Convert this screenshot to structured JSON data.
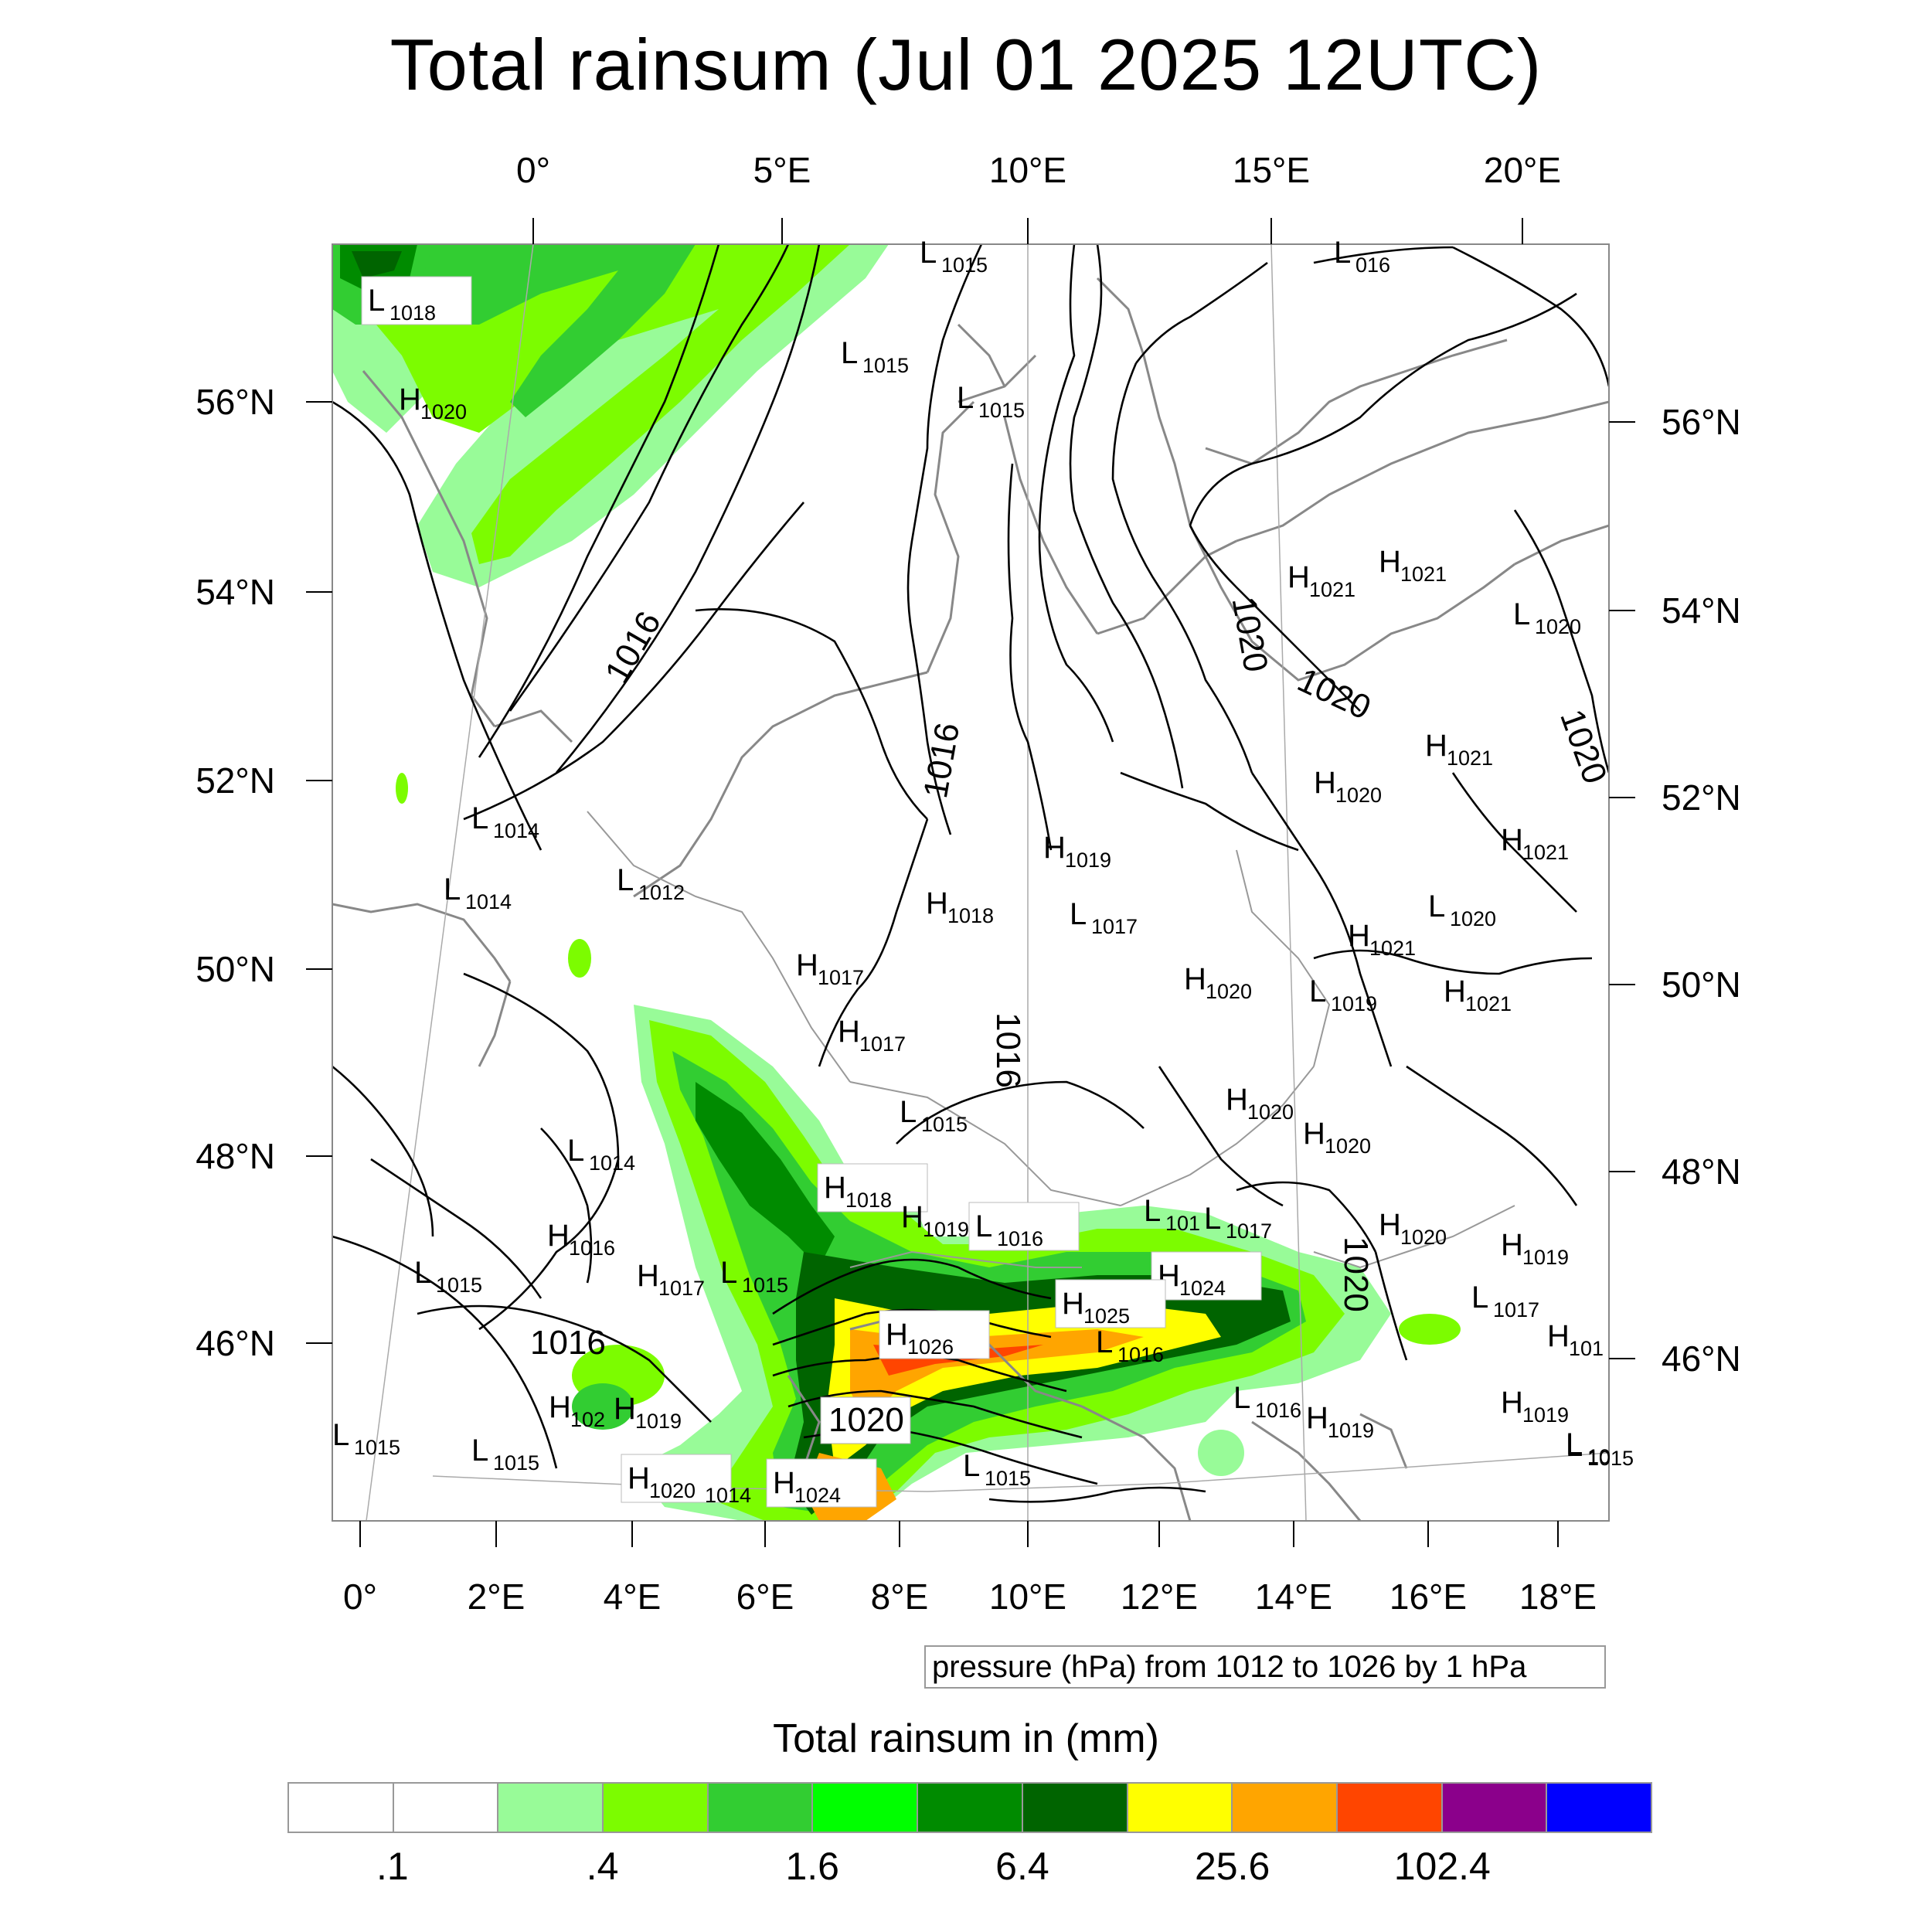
{
  "title": "Total rainsum (Jul 01 2025 12UTC)",
  "map": {
    "top_lon_labels": [
      "0°",
      "5°E",
      "10°E",
      "15°E",
      "20°E"
    ],
    "bottom_lon_labels": [
      "0°",
      "2°E",
      "4°E",
      "6°E",
      "8°E",
      "10°E",
      "12°E",
      "14°E",
      "16°E",
      "18°E"
    ],
    "left_lat_labels": [
      "56°N",
      "54°N",
      "52°N",
      "50°N",
      "48°N",
      "46°N"
    ],
    "right_lat_labels": [
      "56°N",
      "54°N",
      "52°N",
      "50°N",
      "48°N",
      "46°N"
    ],
    "isobar_labels": [
      "1016",
      "1016",
      "1016",
      "1016",
      "1020",
      "1020",
      "1020",
      "1020",
      "1020"
    ],
    "pressure_centers": [
      {
        "type": "L",
        "value": "1018"
      },
      {
        "type": "H",
        "value": "1020"
      },
      {
        "type": "L",
        "value": "1015"
      },
      {
        "type": "L",
        "value": "1015"
      },
      {
        "type": "L",
        "value": "1015"
      },
      {
        "type": "L",
        "value": "016"
      },
      {
        "type": "L",
        "value": "1014"
      },
      {
        "type": "L",
        "value": "1014"
      },
      {
        "type": "L",
        "value": "1012"
      },
      {
        "type": "H",
        "value": "1019"
      },
      {
        "type": "H",
        "value": "1018"
      },
      {
        "type": "L",
        "value": "1017"
      },
      {
        "type": "H",
        "value": "1017"
      },
      {
        "type": "H",
        "value": "1017"
      },
      {
        "type": "H",
        "value": "1021"
      },
      {
        "type": "H",
        "value": "1021"
      },
      {
        "type": "L",
        "value": "1020"
      },
      {
        "type": "H",
        "value": "1021"
      },
      {
        "type": "H",
        "value": "1020"
      },
      {
        "type": "H",
        "value": "1021"
      },
      {
        "type": "L",
        "value": "1020"
      },
      {
        "type": "H",
        "value": "1021"
      },
      {
        "type": "H",
        "value": "1020"
      },
      {
        "type": "L",
        "value": "1019"
      },
      {
        "type": "H",
        "value": "1021"
      },
      {
        "type": "H",
        "value": "1020"
      },
      {
        "type": "H",
        "value": "1020"
      },
      {
        "type": "L",
        "value": "1015"
      },
      {
        "type": "L",
        "value": "1014"
      },
      {
        "type": "H",
        "value": "1018"
      },
      {
        "type": "H",
        "value": "1019"
      },
      {
        "type": "L",
        "value": "1016"
      },
      {
        "type": "L",
        "value": "101"
      },
      {
        "type": "L",
        "value": "1017"
      },
      {
        "type": "H",
        "value": "1020"
      },
      {
        "type": "H",
        "value": "1016"
      },
      {
        "type": "L",
        "value": "1015"
      },
      {
        "type": "H",
        "value": "1017"
      },
      {
        "type": "L",
        "value": "1015"
      },
      {
        "type": "H",
        "value": "1024"
      },
      {
        "type": "H",
        "value": "1025"
      },
      {
        "type": "H",
        "value": "1026"
      },
      {
        "type": "L",
        "value": "1016"
      },
      {
        "type": "H",
        "value": "1019"
      },
      {
        "type": "L",
        "value": "1017"
      },
      {
        "type": "H",
        "value": "101"
      },
      {
        "type": "H",
        "value": "102"
      },
      {
        "type": "H",
        "value": "1019"
      },
      {
        "type": "L",
        "value": "1015"
      },
      {
        "type": "L",
        "value": "1015"
      },
      {
        "type": "L",
        "value": "1016"
      },
      {
        "type": "H",
        "value": "1020"
      },
      {
        "type": "H",
        "value": "1024"
      },
      {
        "type": "L",
        "value": "1015"
      },
      {
        "type": "H",
        "value": "1019"
      },
      {
        "type": "L",
        "value": "1015"
      },
      {
        "type": "H",
        "value": "1019"
      },
      {
        "type": "L",
        "value": "10"
      }
    ],
    "loose_labels": [
      "1020",
      "1014"
    ]
  },
  "contour_info": "pressure (hPa) from 1012 to 1026 by 1 hPa",
  "colorbar": {
    "title": "Total rainsum in (mm)",
    "colors": [
      "#ffffff",
      "#ffffff",
      "#98fb98",
      "#7cfc00",
      "#32cd32",
      "#00ff00",
      "#008b00",
      "#006400",
      "#ffff00",
      "#ffa500",
      "#ff4500",
      "#8b008b",
      "#0000ff"
    ],
    "labels": [
      ".1",
      ".4",
      "1.6",
      "6.4",
      "25.6",
      "102.4"
    ]
  }
}
